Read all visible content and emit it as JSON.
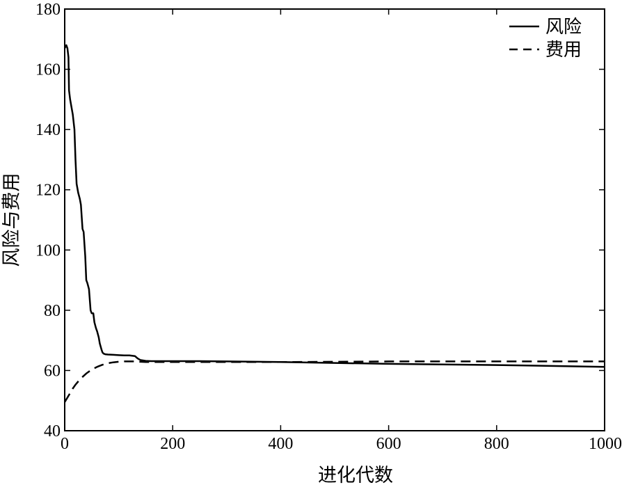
{
  "chart_data": {
    "type": "line",
    "xlabel": "进化代数",
    "ylabel": "风险与费用",
    "xlim": [
      0,
      1000
    ],
    "ylim": [
      40,
      180
    ],
    "xticks": [
      0,
      200,
      400,
      600,
      800,
      1000
    ],
    "yticks": [
      40,
      60,
      80,
      100,
      120,
      140,
      160,
      180
    ],
    "grid": false,
    "legend_position": "top-right",
    "series": [
      {
        "name": "风险",
        "style": "solid",
        "x": [
          0,
          3,
          5,
          7,
          8,
          10,
          12,
          15,
          18,
          20,
          22,
          25,
          28,
          30,
          33,
          35,
          38,
          40,
          42,
          45,
          48,
          50,
          53,
          55,
          58,
          60,
          63,
          65,
          68,
          70,
          72,
          75,
          80,
          90,
          100,
          110,
          120,
          130,
          135,
          140,
          150,
          160,
          180,
          200,
          250,
          300,
          400,
          500,
          600,
          700,
          800,
          900,
          1000
        ],
        "y": [
          167,
          168,
          167,
          164,
          153,
          150,
          148,
          145,
          140,
          130,
          122,
          119,
          117,
          115,
          107,
          106,
          98,
          90,
          89,
          87,
          80,
          79,
          79,
          76,
          74,
          73,
          71,
          69,
          67,
          66,
          65.6,
          65.4,
          65.3,
          65.2,
          65.1,
          65.0,
          65.0,
          64.8,
          64.0,
          63.5,
          63.2,
          63.1,
          63.1,
          63.1,
          63.1,
          63.0,
          62.8,
          62.5,
          62.2,
          62.0,
          61.8,
          61.5,
          61.2
        ]
      },
      {
        "name": "费用",
        "style": "dashed",
        "x": [
          0,
          5,
          10,
          15,
          20,
          30,
          40,
          50,
          60,
          70,
          80,
          90,
          100,
          110,
          120,
          130,
          140,
          150,
          200,
          300,
          400,
          500,
          600,
          700,
          800,
          900,
          1000
        ],
        "y": [
          49.5,
          51,
          52.5,
          54,
          55.3,
          57.4,
          59,
          60.3,
          61.2,
          61.9,
          62.4,
          62.7,
          62.9,
          63.0,
          63.0,
          63.0,
          62.9,
          62.8,
          62.8,
          62.8,
          62.8,
          62.9,
          63.0,
          63.0,
          63.0,
          63.0,
          63.0
        ]
      }
    ]
  }
}
